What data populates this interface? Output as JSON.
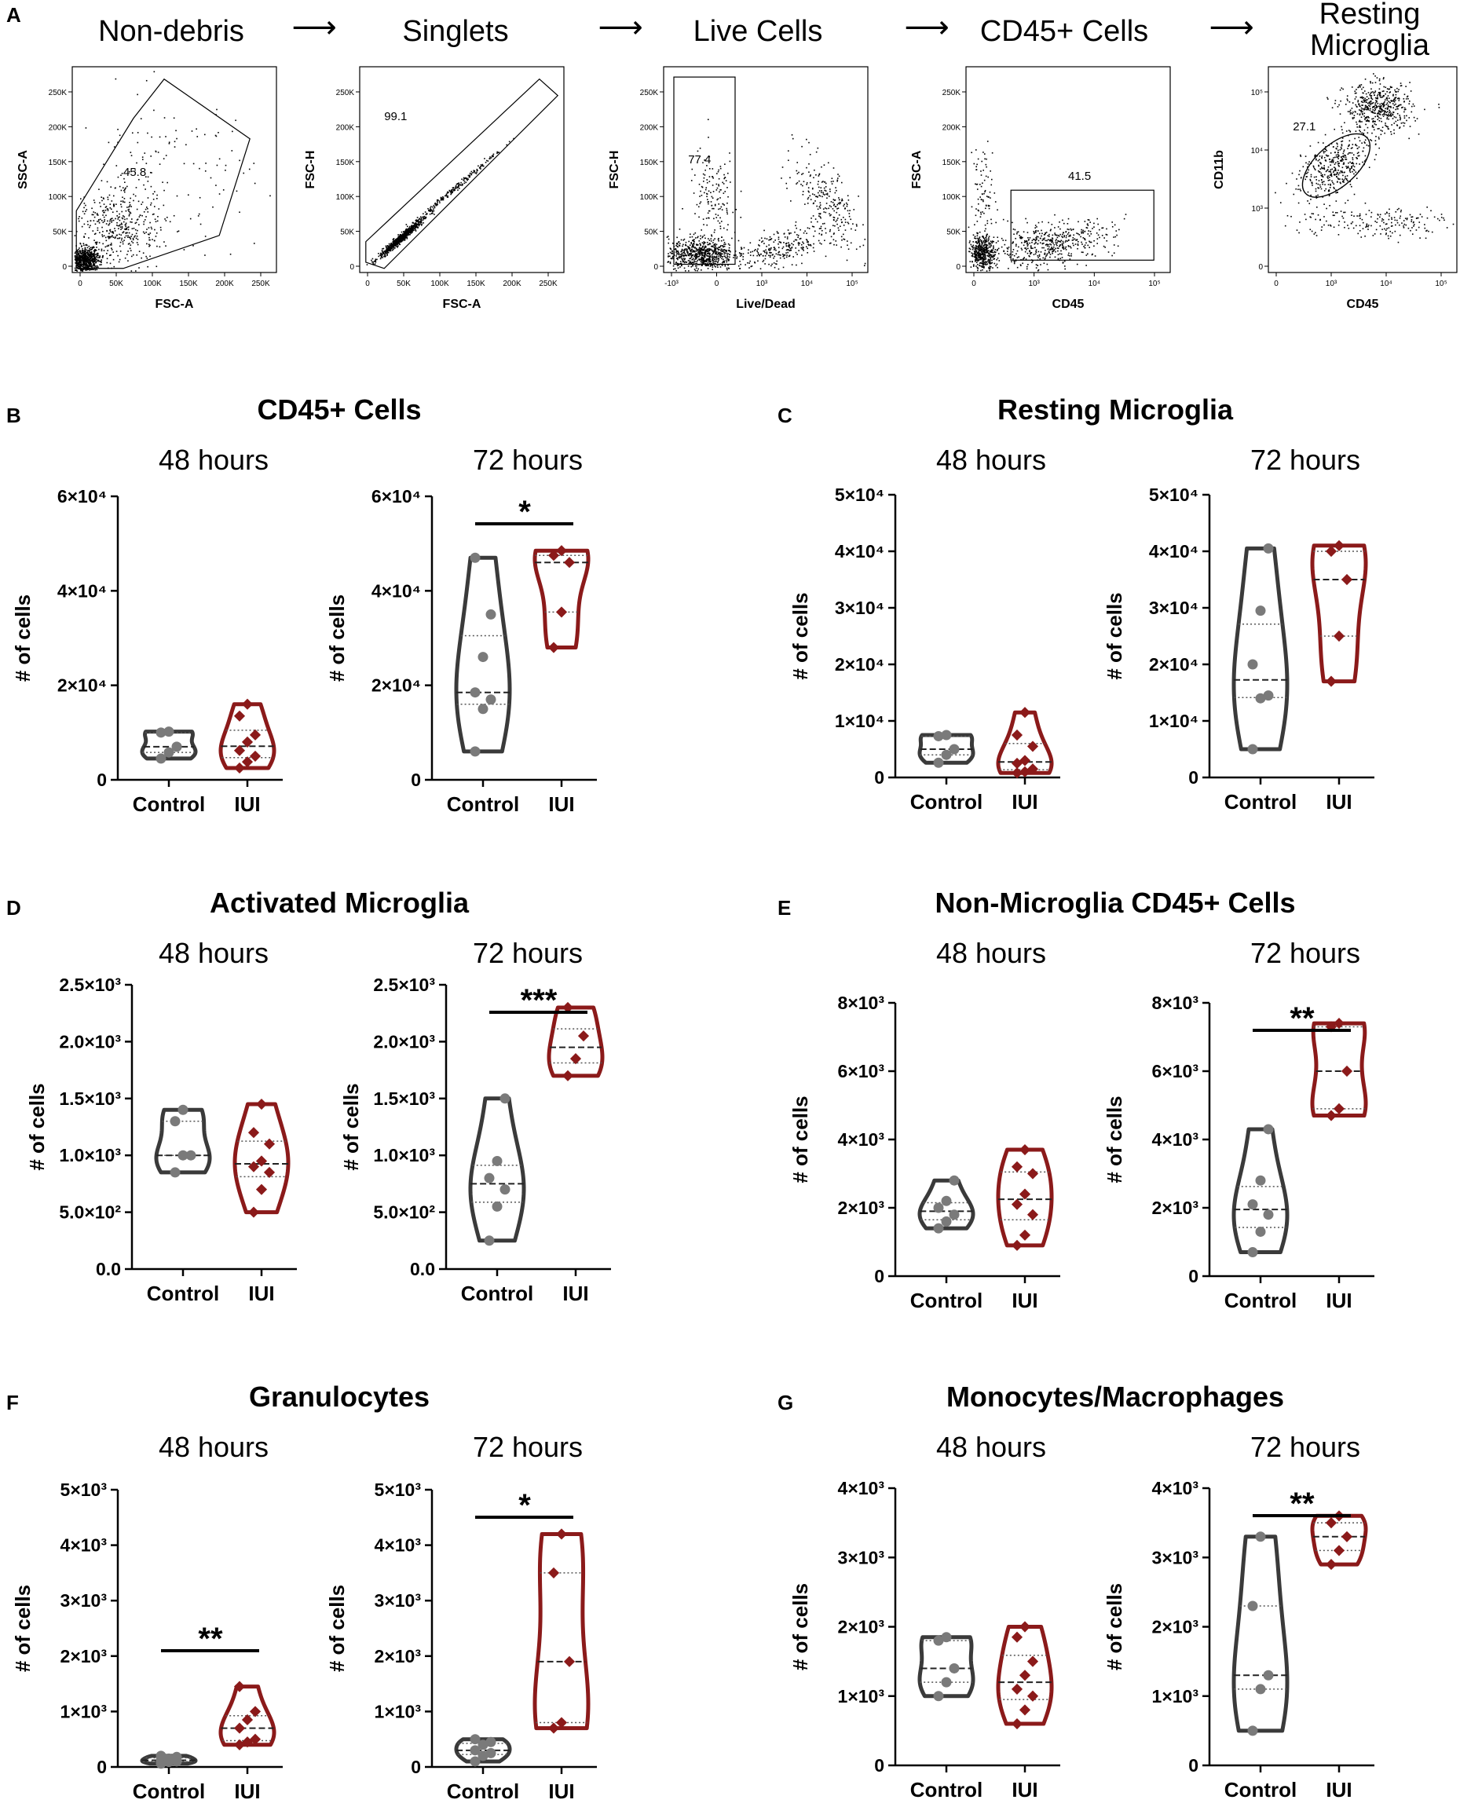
{
  "flow": {
    "panel_label": "A",
    "arrow": "⟶",
    "gates": [
      {
        "title": [
          "Non-debris"
        ],
        "xlabel": "FSC-A",
        "ylabel": "SSC-A",
        "percent": "45.8",
        "xticks": [
          "0",
          "50K",
          "100K",
          "150K",
          "200K",
          "250K"
        ],
        "yticks": [
          "0",
          "50K",
          "100K",
          "150K",
          "200K",
          "250K"
        ]
      },
      {
        "title": [
          "Singlets"
        ],
        "xlabel": "FSC-A",
        "ylabel": "FSC-H",
        "percent": "99.1",
        "xticks": [
          "0",
          "50K",
          "100K",
          "150K",
          "200K",
          "250K"
        ],
        "yticks": [
          "0",
          "50K",
          "100K",
          "150K",
          "200K",
          "250K"
        ]
      },
      {
        "title": [
          "Live Cells"
        ],
        "xlabel": "Live/Dead",
        "ylabel": "FSC-H",
        "percent": "77.4",
        "xticks": [
          "-10³",
          "0",
          "10³",
          "10⁴",
          "10⁵"
        ],
        "yticks": [
          "0",
          "50K",
          "100K",
          "150K",
          "200K",
          "250K"
        ]
      },
      {
        "title": [
          "CD45+ Cells"
        ],
        "xlabel": "CD45",
        "ylabel": "FSC-A",
        "percent": "41.5",
        "xticks": [
          "0",
          "10³",
          "10⁴",
          "10⁵"
        ],
        "yticks": [
          "0",
          "50K",
          "100K",
          "150K",
          "200K",
          "250K"
        ]
      },
      {
        "title": [
          "Resting",
          "Microglia"
        ],
        "xlabel": "CD45",
        "ylabel": "CD11b",
        "percent": "27.1",
        "xticks": [
          "0",
          "10³",
          "10⁴",
          "10⁵"
        ],
        "yticks": [
          "0",
          "10³",
          "10⁴",
          "10⁵"
        ]
      }
    ]
  },
  "chart_data": [
    {
      "panel": "B",
      "title": "CD45+ Cells",
      "subtitle": "48 hours",
      "type": "violin",
      "ylabel": "# of cells",
      "ylim": [
        0,
        60000
      ],
      "yticks": [
        "0",
        "2×10⁴",
        "4×10⁴",
        "6×10⁴"
      ],
      "categories": [
        "Control",
        "IUI"
      ],
      "series": [
        {
          "name": "Control",
          "values": [
            10200,
            10000,
            7000,
            5800,
            4500
          ]
        },
        {
          "name": "IUI",
          "values": [
            16000,
            13500,
            9500,
            8000,
            6200,
            5000,
            3800,
            2500
          ]
        }
      ],
      "significance": null
    },
    {
      "panel": "B",
      "title": "CD45+ Cells",
      "subtitle": "72 hours",
      "type": "violin",
      "ylabel": "# of cells",
      "ylim": [
        0,
        60000
      ],
      "yticks": [
        "0",
        "2×10⁴",
        "4×10⁴",
        "6×10⁴"
      ],
      "categories": [
        "Control",
        "IUI"
      ],
      "series": [
        {
          "name": "Control",
          "values": [
            47000,
            35000,
            26000,
            18500,
            17000,
            15000,
            6000
          ]
        },
        {
          "name": "IUI",
          "values": [
            48500,
            47500,
            46000,
            35500,
            28000
          ]
        }
      ],
      "significance": "*"
    },
    {
      "panel": "C",
      "title": "Resting Microglia",
      "subtitle": "48 hours",
      "type": "violin",
      "ylabel": "# of cells",
      "ylim": [
        0,
        50000
      ],
      "yticks": [
        "0",
        "1×10⁴",
        "2×10⁴",
        "3×10⁴",
        "4×10⁴",
        "5×10⁴"
      ],
      "categories": [
        "Control",
        "IUI"
      ],
      "series": [
        {
          "name": "Control",
          "values": [
            7500,
            7300,
            5000,
            4000,
            2600
          ]
        },
        {
          "name": "IUI",
          "values": [
            11500,
            7500,
            5500,
            3000,
            2500,
            1500,
            1000,
            800
          ]
        }
      ],
      "significance": null
    },
    {
      "panel": "C",
      "title": "Resting Microglia",
      "subtitle": "72 hours",
      "type": "violin",
      "ylabel": "# of cells",
      "ylim": [
        0,
        50000
      ],
      "yticks": [
        "0",
        "1×10⁴",
        "2×10⁴",
        "3×10⁴",
        "4×10⁴",
        "5×10⁴"
      ],
      "categories": [
        "Control",
        "IUI"
      ],
      "series": [
        {
          "name": "Control",
          "values": [
            40500,
            29500,
            20000,
            14500,
            14000,
            5000
          ]
        },
        {
          "name": "IUI",
          "values": [
            41000,
            40000,
            35000,
            25000,
            17000
          ]
        }
      ],
      "significance": null
    },
    {
      "panel": "D",
      "title": "Activated Microglia",
      "subtitle": "48 hours",
      "type": "violin",
      "ylabel": "# of cells",
      "ylim": [
        0,
        2500
      ],
      "yticks": [
        "0.0",
        "5.0×10²",
        "1.0×10³",
        "1.5×10³",
        "2.0×10³",
        "2.5×10³"
      ],
      "categories": [
        "Control",
        "IUI"
      ],
      "series": [
        {
          "name": "Control",
          "values": [
            1400,
            1300,
            1000,
            1000,
            850
          ]
        },
        {
          "name": "IUI",
          "values": [
            1450,
            1200,
            1100,
            950,
            900,
            850,
            700,
            500
          ]
        }
      ],
      "significance": null
    },
    {
      "panel": "D",
      "title": "Activated Microglia",
      "subtitle": "72 hours",
      "type": "violin",
      "ylabel": "# of cells",
      "ylim": [
        0,
        2500
      ],
      "yticks": [
        "0.0",
        "5.0×10²",
        "1.0×10³",
        "1.5×10³",
        "2.0×10³",
        "2.5×10³"
      ],
      "categories": [
        "Control",
        "IUI"
      ],
      "series": [
        {
          "name": "Control",
          "values": [
            1500,
            950,
            800,
            700,
            550,
            250
          ]
        },
        {
          "name": "IUI",
          "values": [
            2300,
            2050,
            1850,
            1700
          ]
        }
      ],
      "significance": "***"
    },
    {
      "panel": "E",
      "title": "Non-Microglia CD45+ Cells",
      "subtitle": "48 hours",
      "type": "violin",
      "ylabel": "# of cells",
      "ylim": [
        0,
        8000
      ],
      "yticks": [
        "0",
        "2×10³",
        "4×10³",
        "6×10³",
        "8×10³"
      ],
      "categories": [
        "Control",
        "IUI"
      ],
      "series": [
        {
          "name": "Control",
          "values": [
            2800,
            2200,
            2000,
            1800,
            1600,
            1400
          ]
        },
        {
          "name": "IUI",
          "values": [
            3700,
            3200,
            3000,
            2400,
            2100,
            1800,
            1200,
            900
          ]
        }
      ],
      "significance": null
    },
    {
      "panel": "E",
      "title": "Non-Microglia CD45+ Cells",
      "subtitle": "72 hours",
      "type": "violin",
      "ylabel": "# of cells",
      "ylim": [
        0,
        8000
      ],
      "yticks": [
        "0",
        "2×10³",
        "4×10³",
        "6×10³",
        "8×10³"
      ],
      "categories": [
        "Control",
        "IUI"
      ],
      "series": [
        {
          "name": "Control",
          "values": [
            4300,
            2800,
            2100,
            1800,
            1300,
            700
          ]
        },
        {
          "name": "IUI",
          "values": [
            7400,
            7300,
            6000,
            4900,
            4700
          ]
        }
      ],
      "significance": "**"
    },
    {
      "panel": "F",
      "title": "Granulocytes",
      "subtitle": "48 hours",
      "type": "violin",
      "ylabel": "# of cells",
      "ylim": [
        0,
        5000
      ],
      "yticks": [
        "0",
        "1×10³",
        "2×10³",
        "3×10³",
        "4×10³",
        "5×10³"
      ],
      "categories": [
        "Control",
        "IUI"
      ],
      "series": [
        {
          "name": "Control",
          "values": [
            200,
            180,
            150,
            120,
            100,
            90,
            60
          ]
        },
        {
          "name": "IUI",
          "values": [
            1450,
            1000,
            850,
            700,
            500,
            450,
            400
          ]
        }
      ],
      "significance": "**"
    },
    {
      "panel": "F",
      "title": "Granulocytes",
      "subtitle": "72 hours",
      "type": "violin",
      "ylabel": "# of cells",
      "ylim": [
        0,
        5000
      ],
      "yticks": [
        "0",
        "1×10³",
        "2×10³",
        "3×10³",
        "4×10³",
        "5×10³"
      ],
      "categories": [
        "Control",
        "IUI"
      ],
      "series": [
        {
          "name": "Control",
          "values": [
            500,
            450,
            400,
            300,
            250,
            200,
            100
          ]
        },
        {
          "name": "IUI",
          "values": [
            4200,
            3500,
            1900,
            800,
            700
          ]
        }
      ],
      "significance": "*"
    },
    {
      "panel": "G",
      "title": "Monocytes/Macrophages",
      "subtitle": "48 hours",
      "type": "violin",
      "ylabel": "# of cells",
      "ylim": [
        0,
        4000
      ],
      "yticks": [
        "0",
        "1×10³",
        "2×10³",
        "3×10³",
        "4×10³"
      ],
      "categories": [
        "Control",
        "IUI"
      ],
      "series": [
        {
          "name": "Control",
          "values": [
            1850,
            1800,
            1400,
            1200,
            1000
          ]
        },
        {
          "name": "IUI",
          "values": [
            2000,
            1850,
            1500,
            1300,
            1100,
            1000,
            800,
            600
          ]
        }
      ],
      "significance": null
    },
    {
      "panel": "G",
      "title": "Monocytes/Macrophages",
      "subtitle": "72 hours",
      "type": "violin",
      "ylabel": "# of cells",
      "ylim": [
        0,
        4000
      ],
      "yticks": [
        "0",
        "1×10³",
        "2×10³",
        "3×10³",
        "4×10³"
      ],
      "categories": [
        "Control",
        "IUI"
      ],
      "series": [
        {
          "name": "Control",
          "values": [
            3300,
            2300,
            1300,
            1100,
            500
          ]
        },
        {
          "name": "IUI",
          "values": [
            3600,
            3500,
            3300,
            3100,
            2900
          ]
        }
      ],
      "significance": "**"
    }
  ],
  "colors": {
    "control": "#3a3a3a",
    "iui": "#8b1a1a",
    "control_point": "#7a7a7a",
    "iui_point": "#8b1a1a"
  }
}
